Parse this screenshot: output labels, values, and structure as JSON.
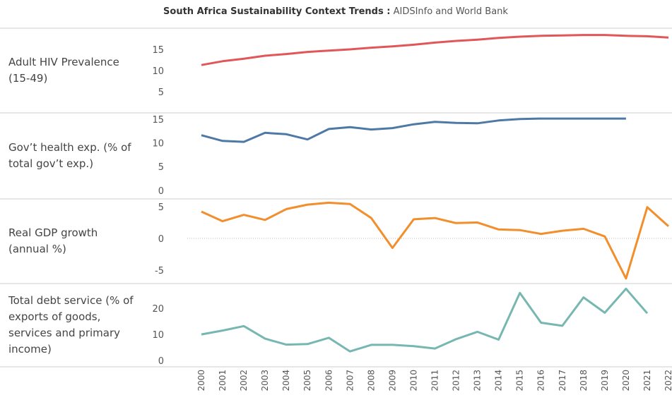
{
  "title": "South Africa Sustainability Context Trends :",
  "source": " AIDSInfo and World Bank",
  "categories": [
    "2000",
    "2001",
    "2002",
    "2003",
    "2004",
    "2005",
    "2006",
    "2007",
    "2008",
    "2009",
    "2010",
    "2011",
    "2012",
    "2013",
    "2014",
    "2015",
    "2016",
    "2017",
    "2018",
    "2019",
    "2020",
    "2021",
    "2022"
  ],
  "chart_data": [
    {
      "type": "line",
      "y_label": "Adult HIV Prevalence (15-49)",
      "ylim": [
        0,
        20
      ],
      "yticks": [
        5,
        10,
        15
      ],
      "series": [
        {
          "color": "#e15759",
          "values": [
            11.3,
            12.2,
            12.8,
            13.5,
            13.9,
            14.4,
            14.7,
            15.0,
            15.4,
            15.7,
            16.1,
            16.6,
            17.0,
            17.3,
            17.7,
            18.0,
            18.2,
            18.3,
            18.4,
            18.4,
            18.2,
            18.1,
            17.8
          ]
        }
      ]
    },
    {
      "type": "line",
      "y_label": "Gov’t health exp. (% of total gov’t exp.)",
      "ylim": [
        -1.8,
        16.3
      ],
      "yticks": [
        0,
        5,
        10,
        15
      ],
      "series": [
        {
          "color": "#4e79a7",
          "values": [
            11.6,
            10.4,
            10.2,
            12.1,
            11.8,
            10.7,
            12.9,
            13.3,
            12.8,
            13.1,
            13.9,
            14.4,
            14.2,
            14.1,
            14.7,
            15.0,
            15.1,
            15.1,
            15.1,
            15.1,
            15.1,
            null,
            null
          ]
        }
      ]
    },
    {
      "type": "line",
      "y_label": "Real GDP growth (annual %)",
      "ylim": [
        -7.1,
        6.2
      ],
      "yticks": [
        -5,
        0,
        5
      ],
      "zero_line": true,
      "series": [
        {
          "color": "#f28e2b",
          "values": [
            4.2,
            2.7,
            3.7,
            2.9,
            4.6,
            5.3,
            5.6,
            5.4,
            3.2,
            -1.5,
            3.0,
            3.2,
            2.4,
            2.5,
            1.4,
            1.3,
            0.7,
            1.2,
            1.5,
            0.3,
            -6.3,
            4.9,
            1.9
          ]
        }
      ]
    },
    {
      "type": "line",
      "y_label": "Total debt service (% of exports of goods, services and primary income)",
      "ylim": [
        -2.4,
        29.5
      ],
      "yticks": [
        0,
        10,
        20
      ],
      "series": [
        {
          "color": "#76b7b2",
          "values": [
            10.0,
            11.5,
            13.2,
            8.4,
            6.1,
            6.3,
            8.7,
            3.5,
            6.0,
            6.0,
            5.5,
            4.6,
            8.2,
            11.0,
            8.0,
            25.9,
            14.5,
            13.3,
            24.2,
            18.3,
            27.5,
            18.1,
            null
          ]
        }
      ]
    }
  ]
}
